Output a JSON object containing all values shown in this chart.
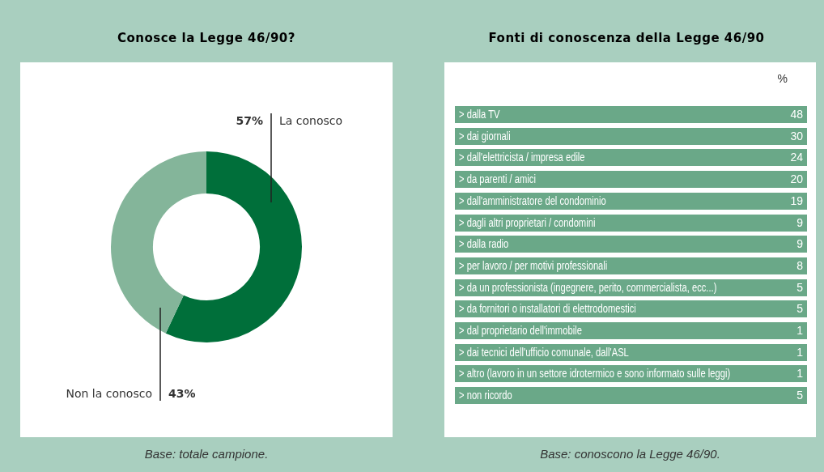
{
  "chart_data": [
    {
      "type": "donut",
      "title": "Conosce la Legge 46/90?",
      "categories": [
        "La conosco",
        "Non la conosco"
      ],
      "values": [
        57,
        43
      ],
      "colors": [
        "#006f3a",
        "#84b59a"
      ],
      "value_labels": [
        "57%",
        "43%"
      ],
      "annotations": [
        "Base: totale campione."
      ]
    },
    {
      "type": "other",
      "title": "Fonti di conoscenza della Legge 46/90",
      "ylabel": "%",
      "categories": [
        "> dalla TV",
        "> dai giornali",
        "> dall'elettricista / impresa edile",
        "> da parenti / amici",
        "> dall'amministratore del condominio",
        "> dagli altri proprietari / condomini",
        "> dalla radio",
        "> per lavoro / per motivi professionali",
        "> da un professionista (ingegnere, perito, commercialista, ecc...)",
        "> da fornitori o installatori di elettrodomestici",
        "> dal proprietario dell'immobile",
        "> dai tecnici dell'ufficio comunale, dall'ASL",
        "> altro (lavoro in un settore idrotermico e sono informato sulle leggi)",
        "> non ricordo"
      ],
      "values": [
        48,
        30,
        24,
        20,
        19,
        9,
        9,
        8,
        5,
        5,
        1,
        1,
        1,
        5
      ],
      "color": "#6aa888",
      "data_labels": true,
      "annotations": [
        "Base: conoscono la Legge 46/90."
      ]
    }
  ]
}
